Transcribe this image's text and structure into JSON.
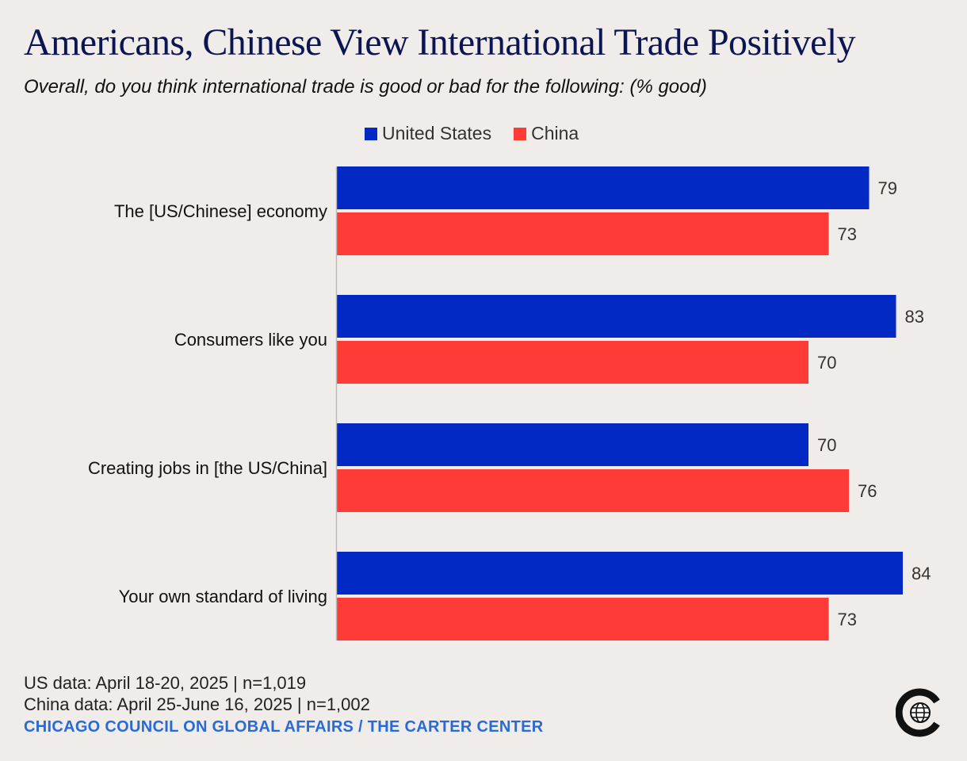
{
  "title": "Americans, Chinese View International Trade Positively",
  "subtitle": "Overall, do you think international trade is good or bad for the following: (% good)",
  "footer": {
    "us_note": "US data: April 18-20, 2025 | n=1,019",
    "china_note": "China data: April 25-June 16, 2025 | n=1,002",
    "source": "CHICAGO COUNCIL ON GLOBAL AFFAIRS / THE CARTER CENTER"
  },
  "logo": {
    "icon": "globe-icon"
  },
  "chart_data": {
    "type": "bar",
    "orientation": "horizontal",
    "title": "Americans, Chinese View International Trade Positively",
    "xlabel": "",
    "ylabel": "",
    "xlim": [
      0,
      100
    ],
    "grid": false,
    "legend_position": "top",
    "categories": [
      "The [US/Chinese] economy",
      "Consumers like you",
      "Creating jobs in [the US/China]",
      "Your own standard of living"
    ],
    "series": [
      {
        "name": "United States",
        "color": "#0229c3",
        "values": [
          79,
          83,
          70,
          84
        ]
      },
      {
        "name": "China",
        "color": "#ff3b37",
        "values": [
          73,
          70,
          76,
          73
        ]
      }
    ]
  }
}
